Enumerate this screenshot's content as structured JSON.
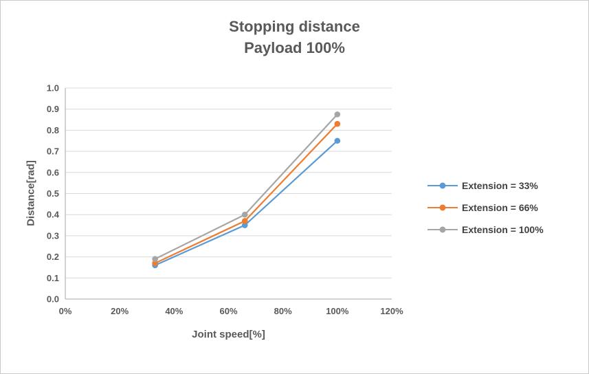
{
  "chart_data": {
    "type": "line",
    "title": "Stopping distance",
    "subtitle": "Payload 100%",
    "xlabel": "Joint speed[%]",
    "ylabel": "Distance[rad]",
    "x": [
      33,
      66,
      100
    ],
    "series": [
      {
        "name": "Extension = 33%",
        "color": "#5B9BD5",
        "values": [
          0.16,
          0.35,
          0.75
        ]
      },
      {
        "name": "Extension = 66%",
        "color": "#ED7D31",
        "values": [
          0.17,
          0.37,
          0.83
        ]
      },
      {
        "name": "Extension = 100%",
        "color": "#A5A5A5",
        "values": [
          0.19,
          0.4,
          0.875
        ]
      }
    ],
    "xlim": [
      0,
      120
    ],
    "ylim": [
      0,
      1
    ],
    "x_ticks": [
      "0%",
      "20%",
      "40%",
      "60%",
      "80%",
      "100%",
      "120%"
    ],
    "x_tick_values": [
      0,
      20,
      40,
      60,
      80,
      100,
      120
    ],
    "y_ticks": [
      "0.0",
      "0.1",
      "0.2",
      "0.3",
      "0.4",
      "0.5",
      "0.6",
      "0.7",
      "0.8",
      "0.9",
      "1.0"
    ],
    "y_tick_values": [
      0,
      0.1,
      0.2,
      0.3,
      0.4,
      0.5,
      0.6,
      0.7,
      0.8,
      0.9,
      1.0
    ],
    "grid": "horizontal",
    "legend_position": "right",
    "colors": {
      "title_text": "#595959",
      "tick_text": "#595959",
      "legend_text": "#404040",
      "gridline": "#d9d9d9",
      "axis_line": "#a6a6a6"
    }
  }
}
